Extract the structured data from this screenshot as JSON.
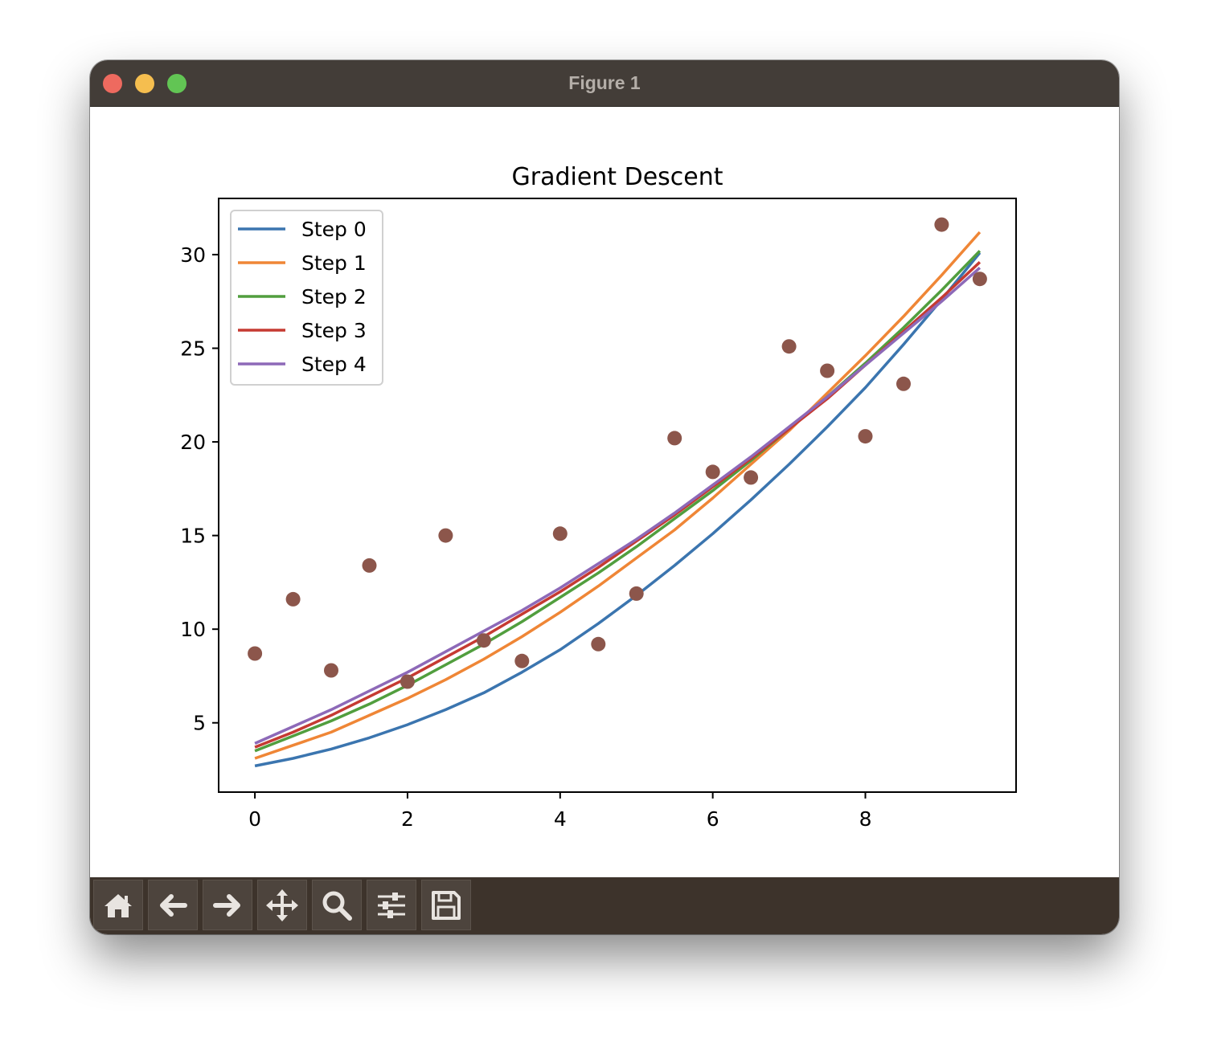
{
  "window": {
    "title": "Figure 1",
    "traffic_colors": {
      "close": "#ee6a5f",
      "minimize": "#f5be4f",
      "maximize": "#62c554"
    }
  },
  "toolbar": {
    "buttons": [
      {
        "icon": "home-icon",
        "label": ""
      },
      {
        "icon": "back-arrow-icon",
        "label": ""
      },
      {
        "icon": "forward-arrow-icon",
        "label": ""
      },
      {
        "icon": "pan-icon",
        "label": ""
      },
      {
        "icon": "zoom-icon",
        "label": ""
      },
      {
        "icon": "sliders-icon",
        "label": ""
      },
      {
        "icon": "save-icon",
        "label": ""
      }
    ]
  },
  "chart_data": {
    "type": "line",
    "title": "Gradient Descent",
    "xlabel": "",
    "ylabel": "",
    "xlim": [
      -0.475,
      9.975
    ],
    "ylim": [
      1.3,
      33.0
    ],
    "xticks": [
      0,
      2,
      4,
      6,
      8
    ],
    "yticks": [
      5,
      10,
      15,
      20,
      25,
      30
    ],
    "grid": false,
    "legend": {
      "placement": "top-left"
    },
    "x": [
      0,
      0.5,
      1,
      1.5,
      2,
      2.5,
      3,
      3.5,
      4,
      4.5,
      5,
      5.5,
      6,
      6.5,
      7,
      7.5,
      8,
      8.5,
      9,
      9.5
    ],
    "series": [
      {
        "name": "Step 0",
        "color": "#3b75af",
        "values": [
          2.7,
          3.1,
          3.6,
          4.2,
          4.9,
          5.7,
          6.6,
          7.7,
          8.9,
          10.3,
          11.8,
          13.4,
          15.1,
          16.9,
          18.8,
          20.8,
          22.9,
          25.2,
          27.6,
          30.1
        ]
      },
      {
        "name": "Step 1",
        "color": "#ef8636",
        "values": [
          3.1,
          3.8,
          4.5,
          5.4,
          6.3,
          7.3,
          8.4,
          9.6,
          10.9,
          12.3,
          13.8,
          15.3,
          17.0,
          18.8,
          20.6,
          22.6,
          24.6,
          26.7,
          28.9,
          31.2
        ]
      },
      {
        "name": "Step 2",
        "color": "#519e3e",
        "values": [
          3.5,
          4.3,
          5.1,
          6.0,
          7.0,
          8.1,
          9.2,
          10.4,
          11.7,
          13.0,
          14.4,
          15.9,
          17.4,
          19.0,
          20.7,
          22.4,
          24.2,
          26.1,
          28.1,
          30.2
        ]
      },
      {
        "name": "Step 3",
        "color": "#c53a32",
        "values": [
          3.7,
          4.5,
          5.4,
          6.4,
          7.4,
          8.5,
          9.6,
          10.8,
          12.0,
          13.3,
          14.7,
          16.1,
          17.6,
          19.1,
          20.7,
          22.3,
          24.1,
          25.9,
          27.7,
          29.6
        ]
      },
      {
        "name": "Step 4",
        "color": "#8d69b8",
        "values": [
          3.9,
          4.8,
          5.7,
          6.7,
          7.7,
          8.8,
          9.9,
          11.0,
          12.2,
          13.5,
          14.8,
          16.2,
          17.7,
          19.2,
          20.8,
          22.4,
          24.1,
          25.8,
          27.5,
          29.3
        ]
      }
    ],
    "scatter": {
      "color": "#8c564b",
      "x": [
        0,
        0.5,
        1,
        1.5,
        2,
        2.5,
        3,
        3.5,
        4,
        4.5,
        5,
        5.5,
        6,
        6.5,
        7,
        7.5,
        8,
        8.5,
        9,
        9.5
      ],
      "y": [
        8.7,
        11.6,
        7.8,
        13.4,
        7.2,
        15.0,
        9.4,
        8.3,
        15.1,
        9.2,
        11.9,
        20.2,
        18.4,
        18.1,
        25.1,
        23.8,
        20.3,
        23.1,
        31.6,
        28.7
      ]
    }
  }
}
